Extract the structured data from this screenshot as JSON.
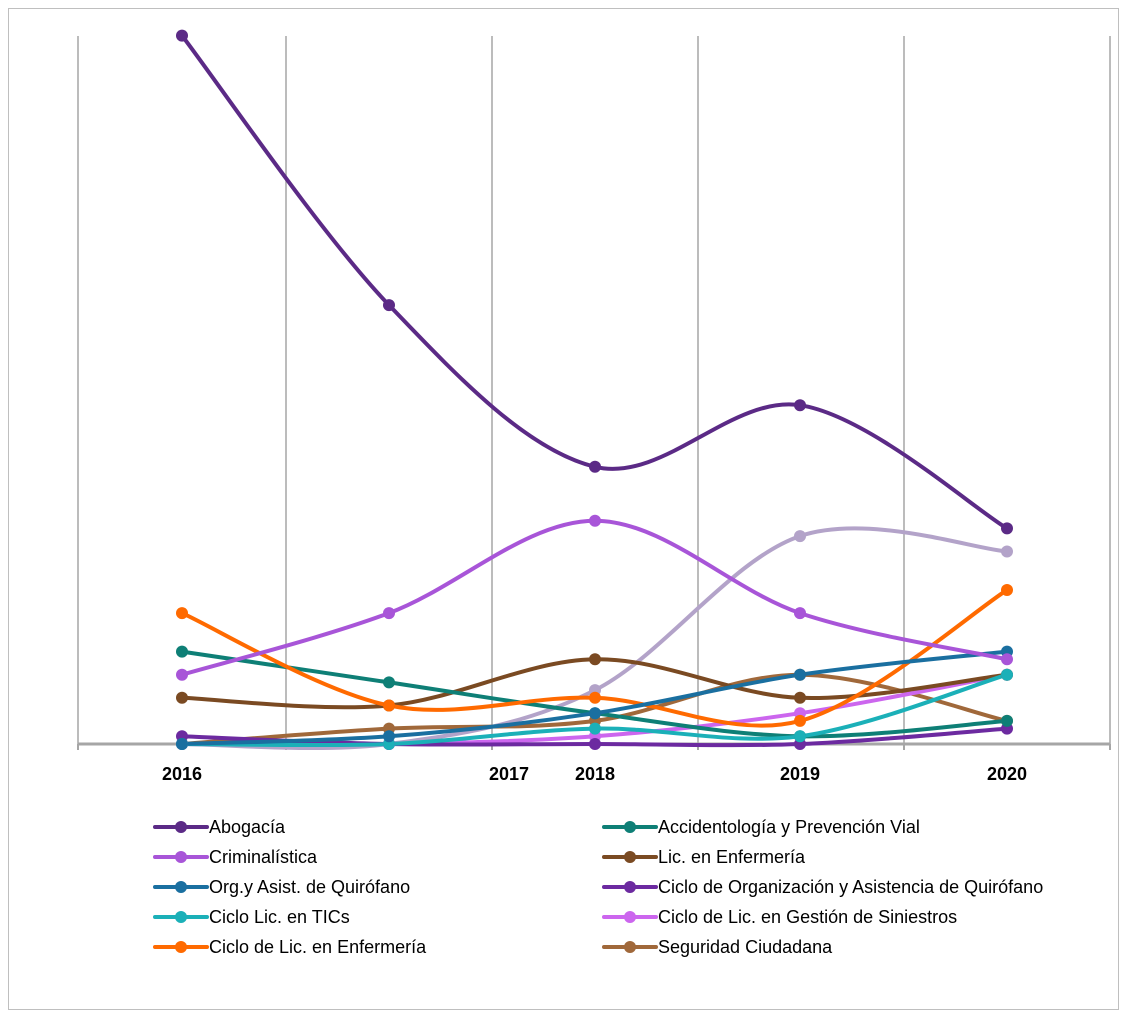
{
  "chart_data": {
    "type": "line",
    "title": "",
    "xlabel": "",
    "ylabel": "",
    "grid": "vertical",
    "legend_position": "bottom",
    "x_tick_labels": [
      "2016",
      "2017",
      "2018",
      "2019",
      "2020"
    ],
    "x": [
      2016,
      2017,
      2018,
      2019,
      2020
    ],
    "series": [
      {
        "name": "Abogacía",
        "color": "#5b2a86",
        "values": [
          92,
          57,
          36,
          44,
          28
        ]
      },
      {
        "name": "Criminalística",
        "color": "#a855d8",
        "values": [
          9,
          17,
          29,
          17,
          11
        ]
      },
      {
        "name": "Org.y Asist. de Quirófano",
        "color": "#1a6fa0",
        "values": [
          0,
          1,
          4,
          9,
          12
        ]
      },
      {
        "name": "Ciclo Lic. en TICs",
        "color": "#1bb0b8",
        "values": [
          0,
          0,
          2,
          1,
          9
        ]
      },
      {
        "name": "Ciclo de Lic. en Enfermería",
        "color": "#ff6a00",
        "values": [
          17,
          5,
          6,
          3,
          20
        ]
      },
      {
        "name": "Accidentología y Prevención Vial",
        "color": "#0e7f76",
        "values": [
          12,
          8,
          4,
          1,
          3
        ]
      },
      {
        "name": "Lic. en Enfermería",
        "color": "#7a4a22",
        "values": [
          6,
          5,
          11,
          6,
          9
        ]
      },
      {
        "name": "Ciclo de Organización y Asistencia de Quirófano",
        "color": "#6c2aa0",
        "values": [
          1,
          0,
          0,
          0,
          2
        ]
      },
      {
        "name": "Ciclo de Lic. en Gestión de Siniestros",
        "color": "#cc66ee",
        "values": [
          0,
          0,
          1,
          4,
          9
        ]
      },
      {
        "name": "Seguridad Ciudadana",
        "color": "#a0683a",
        "values": [
          0,
          2,
          3,
          9,
          3
        ]
      },
      {
        "name": "",
        "color": "#b3a3c9",
        "values": [
          0,
          0,
          7,
          27,
          25
        ]
      }
    ]
  }
}
